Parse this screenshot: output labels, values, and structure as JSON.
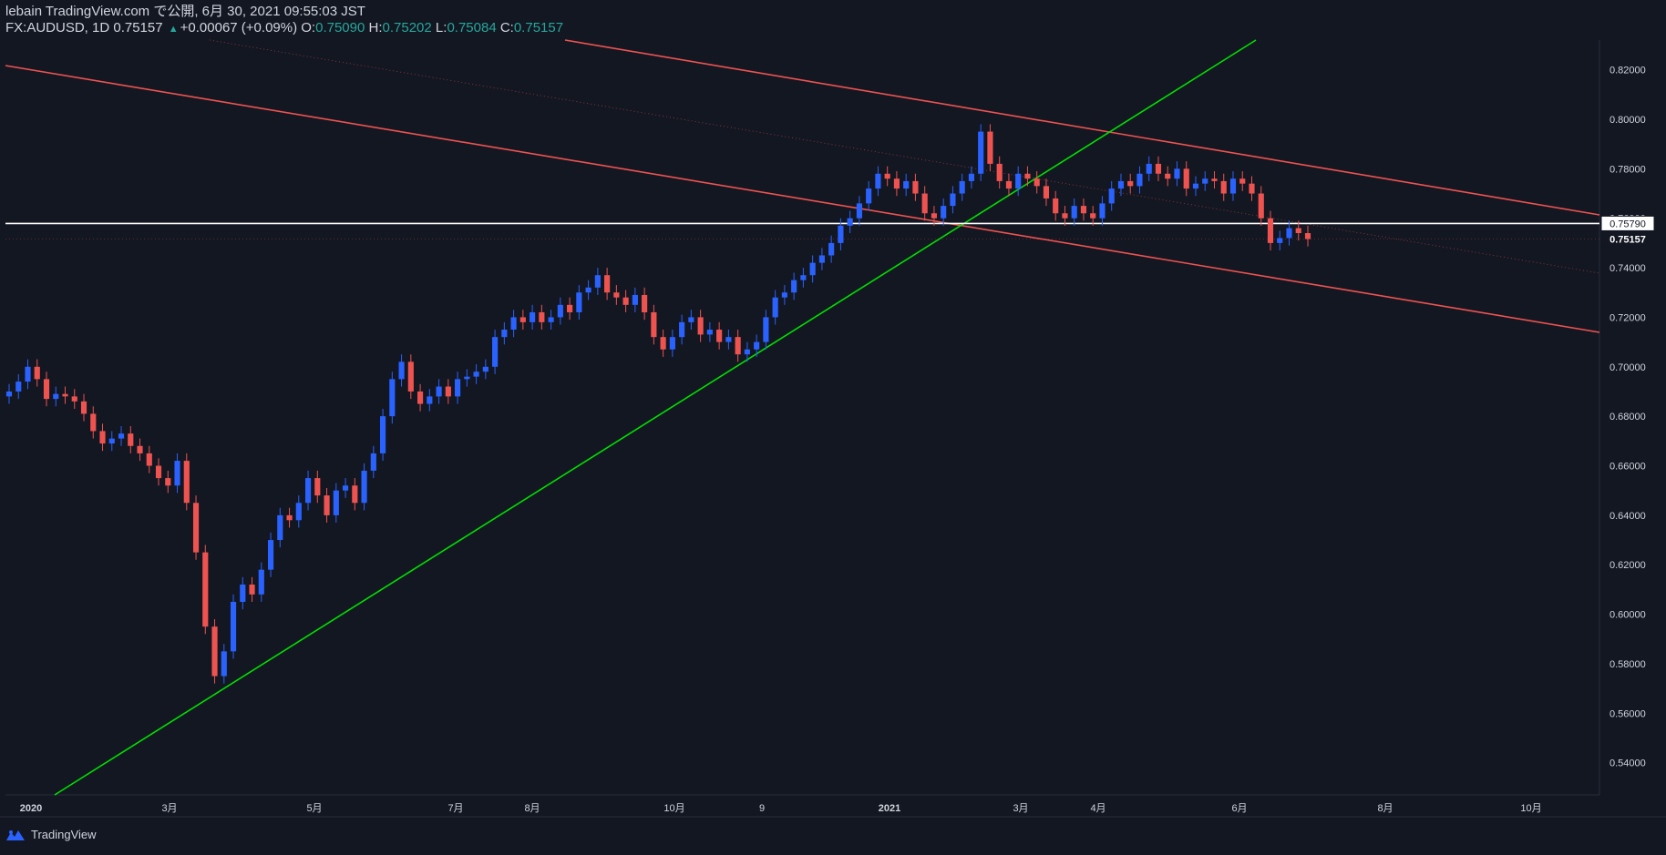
{
  "header": {
    "line1": "lebain TradingView.com で公開, 6月 30, 2021 09:55:03 JST",
    "symbol": "FX:AUDUSD, 1D",
    "last": "0.75157",
    "change": "+0.00067 (+0.09%)",
    "o_label": "O:",
    "o_val": "0.75090",
    "h_label": "H:",
    "h_val": "0.75202",
    "l_label": "L:",
    "l_val": "0.75084",
    "c_label": "C:",
    "c_val": "0.75157",
    "up_arrow": "▲"
  },
  "footer": {
    "brand": "TradingView",
    "icon": "tradingview-logo-icon"
  },
  "colors": {
    "background": "#131722",
    "up": "#2962ff",
    "down": "#ef5350",
    "channel": "#ef5350",
    "trendline": "#00e000",
    "hline": "#ffffff",
    "axis_text": "#d1d4dc",
    "price_badge_bg": "#131722"
  },
  "chart_data": {
    "type": "candlestick",
    "symbol": "FX:AUDUSD",
    "interval": "1D",
    "x_labels": [
      "2020",
      "3月",
      "5月",
      "7月",
      "8月",
      "10月",
      "9",
      "2021",
      "3月",
      "4月",
      "6月",
      "8月",
      "10月"
    ],
    "y_ticks": [
      0.54,
      0.56,
      0.58,
      0.6,
      0.62,
      0.64,
      0.66,
      0.68,
      0.7,
      0.72,
      0.74,
      0.76,
      0.78,
      0.8,
      0.82
    ],
    "y_tick_labels": [
      "0.54000",
      "0.56000",
      "0.58000",
      "0.60000",
      "0.62000",
      "0.64000",
      "0.66000",
      "0.68000",
      "0.70000",
      "0.72000",
      "0.74000",
      "0.76000",
      "0.78000",
      "0.80000",
      "0.82000"
    ],
    "ylim": [
      0.527,
      0.832
    ],
    "horizontal_line": {
      "value": 0.7579,
      "label": "0.75790"
    },
    "last_price": {
      "value": 0.75157,
      "label": "0.75157"
    },
    "closes": [
      0.69,
      0.694,
      0.7,
      0.695,
      0.687,
      0.689,
      0.688,
      0.686,
      0.681,
      0.674,
      0.669,
      0.671,
      0.673,
      0.668,
      0.665,
      0.66,
      0.655,
      0.652,
      0.662,
      0.645,
      0.625,
      0.595,
      0.575,
      0.585,
      0.605,
      0.612,
      0.608,
      0.618,
      0.63,
      0.64,
      0.638,
      0.645,
      0.655,
      0.648,
      0.64,
      0.65,
      0.652,
      0.645,
      0.658,
      0.665,
      0.68,
      0.695,
      0.702,
      0.69,
      0.685,
      0.688,
      0.692,
      0.688,
      0.695,
      0.696,
      0.698,
      0.7,
      0.712,
      0.715,
      0.72,
      0.718,
      0.722,
      0.718,
      0.72,
      0.725,
      0.722,
      0.73,
      0.732,
      0.737,
      0.73,
      0.728,
      0.725,
      0.729,
      0.722,
      0.712,
      0.707,
      0.712,
      0.718,
      0.72,
      0.713,
      0.715,
      0.71,
      0.712,
      0.705,
      0.707,
      0.71,
      0.72,
      0.728,
      0.73,
      0.735,
      0.737,
      0.742,
      0.745,
      0.75,
      0.757,
      0.76,
      0.766,
      0.772,
      0.778,
      0.776,
      0.772,
      0.775,
      0.77,
      0.762,
      0.76,
      0.765,
      0.77,
      0.775,
      0.778,
      0.795,
      0.782,
      0.775,
      0.772,
      0.778,
      0.776,
      0.773,
      0.768,
      0.762,
      0.76,
      0.765,
      0.762,
      0.76,
      0.766,
      0.772,
      0.775,
      0.773,
      0.778,
      0.782,
      0.778,
      0.776,
      0.78,
      0.772,
      0.774,
      0.776,
      0.775,
      0.77,
      0.776,
      0.774,
      0.77,
      0.76,
      0.75,
      0.752,
      0.756,
      0.754,
      0.7516
    ]
  }
}
